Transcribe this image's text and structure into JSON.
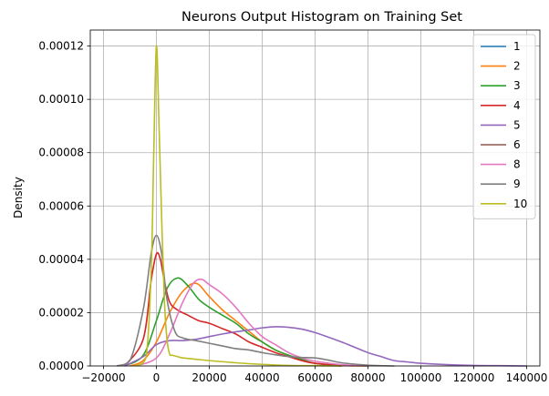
{
  "chart_data": {
    "type": "line",
    "title": "Neurons Output Histogram on Training Set",
    "xlabel": "",
    "ylabel": "Density",
    "xlim": [
      -25000,
      145000
    ],
    "ylim": [
      0,
      0.000126
    ],
    "x_ticks": [
      -20000,
      0,
      20000,
      40000,
      60000,
      80000,
      100000,
      120000,
      140000
    ],
    "x_tick_labels": [
      "−20000",
      "0",
      "20000",
      "40000",
      "60000",
      "80000",
      "100000",
      "120000",
      "140000"
    ],
    "y_ticks": [
      0,
      2e-05,
      4e-05,
      6e-05,
      8e-05,
      0.0001,
      0.00012
    ],
    "y_tick_labels": [
      "0.00000",
      "0.00002",
      "0.00004",
      "0.00006",
      "0.00008",
      "0.00010",
      "0.00012"
    ],
    "grid": true,
    "legend_position": "top-right",
    "series": [
      {
        "name": "1",
        "color": "#1f77b4",
        "x": [],
        "y": []
      },
      {
        "name": "2",
        "color": "#ff7f0e",
        "x": [
          -10000,
          -5000,
          0,
          5000,
          10000,
          15000,
          20000,
          25000,
          30000,
          35000,
          40000,
          45000,
          50000,
          55000,
          60000,
          70000,
          80000
        ],
        "y": [
          0,
          2e-06,
          9e-06,
          2e-05,
          2.8e-05,
          3.1e-05,
          2.6e-05,
          2.1e-05,
          1.7e-05,
          1.3e-05,
          9e-06,
          6e-06,
          4e-06,
          2e-06,
          1e-06,
          2e-07,
          0
        ]
      },
      {
        "name": "3",
        "color": "#2ca02c",
        "x": [
          -12000,
          -5000,
          0,
          4000,
          8000,
          12000,
          16000,
          20000,
          25000,
          30000,
          35000,
          40000,
          45000,
          50000,
          55000,
          60000,
          70000
        ],
        "y": [
          0,
          4e-06,
          1.7e-05,
          2.9e-05,
          3.3e-05,
          3e-05,
          2.5e-05,
          2.2e-05,
          1.9e-05,
          1.6e-05,
          1.2e-05,
          9e-06,
          6e-06,
          4e-06,
          2.5e-06,
          1e-06,
          0
        ]
      },
      {
        "name": "4",
        "color": "#d62728",
        "x": [
          -12000,
          -5000,
          -2000,
          0,
          1500,
          3000,
          5000,
          8000,
          12000,
          16000,
          20000,
          25000,
          30000,
          35000,
          40000,
          45000,
          50000,
          55000,
          60000,
          70000
        ],
        "y": [
          0,
          1e-05,
          3.2e-05,
          4.2e-05,
          4e-05,
          3.2e-05,
          2.4e-05,
          2.1e-05,
          1.9e-05,
          1.7e-05,
          1.6e-05,
          1.4e-05,
          1.2e-05,
          9e-06,
          7e-06,
          5e-06,
          3.5e-06,
          2e-06,
          1e-06,
          0
        ]
      },
      {
        "name": "5",
        "color": "#9467bd",
        "x": [
          -12000,
          -5000,
          0,
          5000,
          10000,
          15000,
          20000,
          25000,
          30000,
          35000,
          40000,
          45000,
          50000,
          55000,
          60000,
          65000,
          70000,
          75000,
          80000,
          85000,
          90000,
          95000,
          100000,
          110000,
          120000,
          130000,
          140000
        ],
        "y": [
          0,
          3.5e-06,
          8e-06,
          9.5e-06,
          9.5e-06,
          1e-05,
          1.1e-05,
          1.2e-05,
          1.28e-05,
          1.35e-05,
          1.43e-05,
          1.47e-05,
          1.45e-05,
          1.38e-05,
          1.25e-05,
          1.08e-05,
          9e-06,
          7e-06,
          5e-06,
          3.5e-06,
          2e-06,
          1.5e-06,
          1e-06,
          5e-07,
          2e-07,
          1e-07,
          0
        ]
      },
      {
        "name": "6",
        "color": "#8c564b",
        "x": [],
        "y": []
      },
      {
        "name": "8",
        "color": "#e377c2",
        "x": [
          -8000,
          0,
          5000,
          10000,
          14000,
          17000,
          20000,
          25000,
          30000,
          35000,
          40000,
          45000,
          50000,
          55000,
          60000,
          70000,
          80000
        ],
        "y": [
          0,
          3e-06,
          1.2e-05,
          2.4e-05,
          3.1e-05,
          3.25e-05,
          3.05e-05,
          2.7e-05,
          2.2e-05,
          1.6e-05,
          1.1e-05,
          8e-06,
          5e-06,
          3e-06,
          1.8e-06,
          5e-07,
          0
        ]
      },
      {
        "name": "9",
        "color": "#7f7f7f",
        "x": [
          -15000,
          -10000,
          -5000,
          -2000,
          0,
          2000,
          4000,
          7000,
          10000,
          15000,
          20000,
          25000,
          30000,
          35000,
          40000,
          45000,
          50000,
          55000,
          60000,
          65000,
          70000,
          80000,
          90000
        ],
        "y": [
          0,
          2e-06,
          2.1e-05,
          4.2e-05,
          4.9e-05,
          4.2e-05,
          2.5e-05,
          1.3e-05,
          1.05e-05,
          9.5e-06,
          8.5e-06,
          7.5e-06,
          6.5e-06,
          6e-06,
          5e-06,
          4.2e-06,
          3.5e-06,
          3.2e-06,
          3e-06,
          2.2e-06,
          1.2e-06,
          3e-07,
          0
        ]
      },
      {
        "name": "10",
        "color": "#bcbd22",
        "x": [
          -8000,
          -4000,
          -2000,
          -1000,
          0,
          1000,
          2000,
          3000,
          4000,
          5000,
          6000,
          8000,
          10000,
          15000,
          20000,
          30000,
          40000,
          50000,
          60000,
          70000
        ],
        "y": [
          0,
          3e-06,
          3.5e-05,
          8e-05,
          0.00012,
          9e-05,
          5.5e-05,
          2.5e-05,
          1e-05,
          4.5e-06,
          4e-06,
          3.5e-06,
          3e-06,
          2.5e-06,
          2e-06,
          1.2e-06,
          6e-07,
          2e-07,
          1e-07,
          0
        ]
      }
    ]
  }
}
